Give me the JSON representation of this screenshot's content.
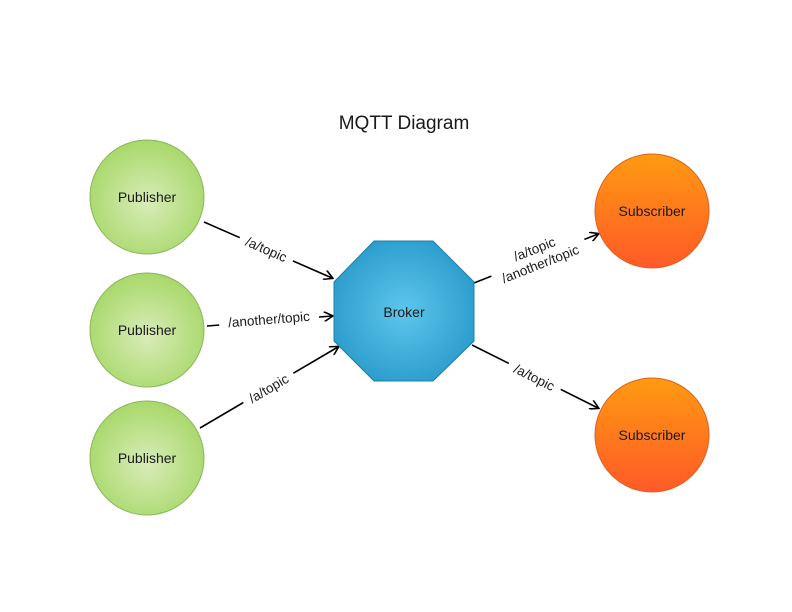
{
  "title": "MQTT Diagram",
  "colors": {
    "publisher_fill": "#a8d86a",
    "publisher_stroke": "#7fb24a",
    "broker_fill": "#2fa3d0",
    "broker_stroke": "#1f7fa8",
    "subscriber_fill": "#ff6a1a",
    "subscriber_stroke": "#d9561a",
    "edge": "#000000"
  },
  "nodes": {
    "publisher_1": "Publisher",
    "publisher_2": "Publisher",
    "publisher_3": "Publisher",
    "broker": "Broker",
    "subscriber_1": "Subscriber",
    "subscriber_2": "Subscriber"
  },
  "edges": {
    "publisher_1_to_broker": "/a/topic",
    "publisher_2_to_broker": "/another/topic",
    "publisher_3_to_broker": "/a/topic",
    "broker_to_subscriber_1": [
      "/a/topic",
      "/another/topic"
    ],
    "broker_to_subscriber_2": "/a/topic"
  }
}
